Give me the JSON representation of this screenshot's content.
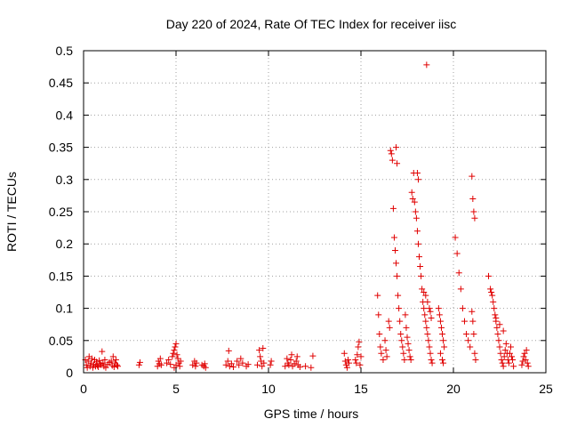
{
  "chart_data": {
    "type": "scatter",
    "title": "Day 220 of 2024, Rate Of TEC Index for receiver iisc",
    "xlabel": "GPS time / hours",
    "ylabel": "ROTI / TECUs",
    "xlim": [
      0,
      25
    ],
    "ylim": [
      0,
      0.5
    ],
    "x_ticks": [
      "0",
      "5",
      "10",
      "15",
      "20",
      "25"
    ],
    "y_ticks": [
      "0",
      "0.05",
      "0.1",
      "0.15",
      "0.2",
      "0.25",
      "0.3",
      "0.35",
      "0.4",
      "0.45",
      "0.5"
    ],
    "grid": true,
    "marker": "+",
    "color": "#e00000",
    "points": [
      [
        0.1,
        0.02
      ],
      [
        0.15,
        0.012
      ],
      [
        0.2,
        0.008
      ],
      [
        0.25,
        0.018
      ],
      [
        0.3,
        0.025
      ],
      [
        0.35,
        0.01
      ],
      [
        0.4,
        0.015
      ],
      [
        0.45,
        0.022
      ],
      [
        0.5,
        0.008
      ],
      [
        0.55,
        0.013
      ],
      [
        0.6,
        0.02
      ],
      [
        0.65,
        0.01
      ],
      [
        0.7,
        0.017
      ],
      [
        0.75,
        0.011
      ],
      [
        0.8,
        0.009
      ],
      [
        0.85,
        0.019
      ],
      [
        0.9,
        0.014
      ],
      [
        0.95,
        0.012
      ],
      [
        1.0,
        0.033
      ],
      [
        1.05,
        0.015
      ],
      [
        1.1,
        0.01
      ],
      [
        1.15,
        0.02
      ],
      [
        1.2,
        0.008
      ],
      [
        1.3,
        0.013
      ],
      [
        1.4,
        0.016
      ],
      [
        1.5,
        0.018
      ],
      [
        1.55,
        0.011
      ],
      [
        1.6,
        0.025
      ],
      [
        1.65,
        0.009
      ],
      [
        1.7,
        0.015
      ],
      [
        1.75,
        0.02
      ],
      [
        1.8,
        0.012
      ],
      [
        1.85,
        0.01
      ],
      [
        3.0,
        0.012
      ],
      [
        3.05,
        0.016
      ],
      [
        4.0,
        0.01
      ],
      [
        4.05,
        0.018
      ],
      [
        4.1,
        0.014
      ],
      [
        4.15,
        0.022
      ],
      [
        4.2,
        0.012
      ],
      [
        4.5,
        0.015
      ],
      [
        4.6,
        0.02
      ],
      [
        4.7,
        0.013
      ],
      [
        4.8,
        0.025
      ],
      [
        4.85,
        0.03
      ],
      [
        4.9,
        0.035
      ],
      [
        4.95,
        0.04
      ],
      [
        5.0,
        0.045
      ],
      [
        5.05,
        0.028
      ],
      [
        5.1,
        0.022
      ],
      [
        5.15,
        0.015
      ],
      [
        5.2,
        0.01
      ],
      [
        5.25,
        0.018
      ],
      [
        5.0,
        0.012
      ],
      [
        4.9,
        0.008
      ],
      [
        5.9,
        0.012
      ],
      [
        6.0,
        0.018
      ],
      [
        6.05,
        0.01
      ],
      [
        6.1,
        0.015
      ],
      [
        6.4,
        0.012
      ],
      [
        6.5,
        0.01
      ],
      [
        6.55,
        0.014
      ],
      [
        6.6,
        0.008
      ],
      [
        7.7,
        0.012
      ],
      [
        7.8,
        0.018
      ],
      [
        7.85,
        0.034
      ],
      [
        7.9,
        0.01
      ],
      [
        8.0,
        0.014
      ],
      [
        8.1,
        0.009
      ],
      [
        8.3,
        0.018
      ],
      [
        8.4,
        0.012
      ],
      [
        8.5,
        0.022
      ],
      [
        8.6,
        0.015
      ],
      [
        8.8,
        0.01
      ],
      [
        8.9,
        0.013
      ],
      [
        9.4,
        0.012
      ],
      [
        9.5,
        0.035
      ],
      [
        9.55,
        0.025
      ],
      [
        9.6,
        0.018
      ],
      [
        9.65,
        0.01
      ],
      [
        9.7,
        0.038
      ],
      [
        9.75,
        0.015
      ],
      [
        10.1,
        0.012
      ],
      [
        10.15,
        0.018
      ],
      [
        10.9,
        0.01
      ],
      [
        11.0,
        0.022
      ],
      [
        11.05,
        0.015
      ],
      [
        11.1,
        0.012
      ],
      [
        11.2,
        0.02
      ],
      [
        11.25,
        0.028
      ],
      [
        11.3,
        0.01
      ],
      [
        11.4,
        0.014
      ],
      [
        11.5,
        0.018
      ],
      [
        11.55,
        0.025
      ],
      [
        11.6,
        0.012
      ],
      [
        11.7,
        0.009
      ],
      [
        12.0,
        0.01
      ],
      [
        12.3,
        0.008
      ],
      [
        12.4,
        0.026
      ],
      [
        14.1,
        0.03
      ],
      [
        14.15,
        0.018
      ],
      [
        14.2,
        0.012
      ],
      [
        14.25,
        0.008
      ],
      [
        14.3,
        0.02
      ],
      [
        14.35,
        0.015
      ],
      [
        14.7,
        0.02
      ],
      [
        14.75,
        0.015
      ],
      [
        14.8,
        0.028
      ],
      [
        14.85,
        0.04
      ],
      [
        14.9,
        0.048
      ],
      [
        14.95,
        0.012
      ],
      [
        15.0,
        0.025
      ],
      [
        15.9,
        0.12
      ],
      [
        15.95,
        0.09
      ],
      [
        16.0,
        0.06
      ],
      [
        16.05,
        0.04
      ],
      [
        16.1,
        0.03
      ],
      [
        16.2,
        0.02
      ],
      [
        16.3,
        0.05
      ],
      [
        16.35,
        0.035
      ],
      [
        16.4,
        0.025
      ],
      [
        16.5,
        0.08
      ],
      [
        16.55,
        0.07
      ],
      [
        16.6,
        0.345
      ],
      [
        16.65,
        0.34
      ],
      [
        16.7,
        0.33
      ],
      [
        16.75,
        0.255
      ],
      [
        16.8,
        0.21
      ],
      [
        16.85,
        0.19
      ],
      [
        16.9,
        0.17
      ],
      [
        16.95,
        0.15
      ],
      [
        17.0,
        0.12
      ],
      [
        17.05,
        0.1
      ],
      [
        17.1,
        0.08
      ],
      [
        17.15,
        0.06
      ],
      [
        17.2,
        0.05
      ],
      [
        17.25,
        0.04
      ],
      [
        17.3,
        0.03
      ],
      [
        17.35,
        0.02
      ],
      [
        16.9,
        0.35
      ],
      [
        16.95,
        0.325
      ],
      [
        17.4,
        0.09
      ],
      [
        17.45,
        0.07
      ],
      [
        17.5,
        0.055
      ],
      [
        17.55,
        0.045
      ],
      [
        17.6,
        0.035
      ],
      [
        17.65,
        0.025
      ],
      [
        17.7,
        0.02
      ],
      [
        17.75,
        0.28
      ],
      [
        17.8,
        0.27
      ],
      [
        17.85,
        0.31
      ],
      [
        17.9,
        0.265
      ],
      [
        17.95,
        0.25
      ],
      [
        18.0,
        0.24
      ],
      [
        18.05,
        0.22
      ],
      [
        18.1,
        0.2
      ],
      [
        18.15,
        0.18
      ],
      [
        18.2,
        0.165
      ],
      [
        18.25,
        0.15
      ],
      [
        18.3,
        0.13
      ],
      [
        18.35,
        0.11
      ],
      [
        18.4,
        0.1
      ],
      [
        18.45,
        0.09
      ],
      [
        18.5,
        0.08
      ],
      [
        18.55,
        0.07
      ],
      [
        18.6,
        0.06
      ],
      [
        18.65,
        0.05
      ],
      [
        18.7,
        0.04
      ],
      [
        18.75,
        0.03
      ],
      [
        18.8,
        0.02
      ],
      [
        18.85,
        0.015
      ],
      [
        18.55,
        0.478
      ],
      [
        18.05,
        0.31
      ],
      [
        18.1,
        0.3
      ],
      [
        18.4,
        0.125
      ],
      [
        18.5,
        0.12
      ],
      [
        18.6,
        0.11
      ],
      [
        18.7,
        0.1
      ],
      [
        18.75,
        0.095
      ],
      [
        18.8,
        0.085
      ],
      [
        19.2,
        0.1
      ],
      [
        19.25,
        0.09
      ],
      [
        19.3,
        0.08
      ],
      [
        19.35,
        0.07
      ],
      [
        19.4,
        0.06
      ],
      [
        19.45,
        0.05
      ],
      [
        19.5,
        0.04
      ],
      [
        19.3,
        0.03
      ],
      [
        19.4,
        0.02
      ],
      [
        19.45,
        0.015
      ],
      [
        20.1,
        0.21
      ],
      [
        20.2,
        0.185
      ],
      [
        20.3,
        0.155
      ],
      [
        20.4,
        0.13
      ],
      [
        20.5,
        0.1
      ],
      [
        20.6,
        0.08
      ],
      [
        20.7,
        0.06
      ],
      [
        20.8,
        0.05
      ],
      [
        20.9,
        0.04
      ],
      [
        21.0,
        0.305
      ],
      [
        21.05,
        0.27
      ],
      [
        21.1,
        0.25
      ],
      [
        21.15,
        0.24
      ],
      [
        21.0,
        0.095
      ],
      [
        21.05,
        0.08
      ],
      [
        21.1,
        0.06
      ],
      [
        21.15,
        0.03
      ],
      [
        21.2,
        0.02
      ],
      [
        21.9,
        0.15
      ],
      [
        22.0,
        0.13
      ],
      [
        22.05,
        0.125
      ],
      [
        22.1,
        0.12
      ],
      [
        22.15,
        0.11
      ],
      [
        22.2,
        0.1
      ],
      [
        22.25,
        0.09
      ],
      [
        22.3,
        0.08
      ],
      [
        22.35,
        0.07
      ],
      [
        22.4,
        0.06
      ],
      [
        22.45,
        0.05
      ],
      [
        22.5,
        0.04
      ],
      [
        22.55,
        0.03
      ],
      [
        22.6,
        0.02
      ],
      [
        22.65,
        0.015
      ],
      [
        22.7,
        0.01
      ],
      [
        22.75,
        0.025
      ],
      [
        22.8,
        0.035
      ],
      [
        22.85,
        0.045
      ],
      [
        22.9,
        0.03
      ],
      [
        22.95,
        0.02
      ],
      [
        23.0,
        0.015
      ],
      [
        23.05,
        0.03
      ],
      [
        23.1,
        0.04
      ],
      [
        23.15,
        0.025
      ],
      [
        23.2,
        0.02
      ],
      [
        23.25,
        0.01
      ],
      [
        22.3,
        0.085
      ],
      [
        22.5,
        0.075
      ],
      [
        22.7,
        0.065
      ],
      [
        23.7,
        0.012
      ],
      [
        23.75,
        0.018
      ],
      [
        23.8,
        0.025
      ],
      [
        23.85,
        0.03
      ],
      [
        23.9,
        0.02
      ],
      [
        23.95,
        0.035
      ],
      [
        24.0,
        0.015
      ],
      [
        24.05,
        0.01
      ]
    ]
  }
}
